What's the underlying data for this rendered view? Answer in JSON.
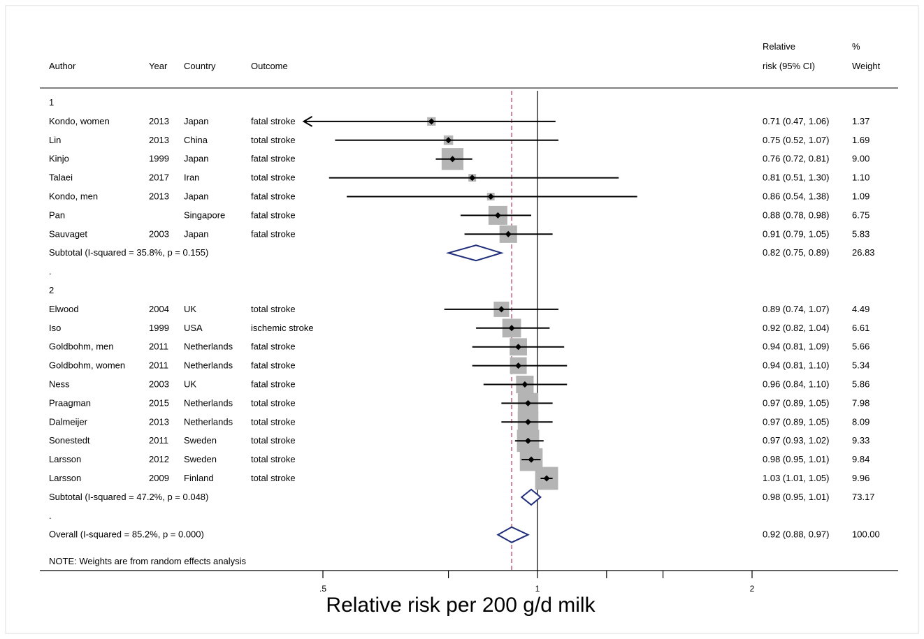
{
  "chart_data": {
    "type": "forest",
    "xlabel": "Relative risk per 200 g/d milk",
    "x_scale": "log",
    "x_ticks": [
      {
        "value": 0.5,
        "label": ".5"
      },
      {
        "value": 1,
        "label": "1"
      },
      {
        "value": 2,
        "label": "2"
      }
    ],
    "x_minor_ticks": [
      0.75,
      1.25,
      1.5
    ],
    "xlim": [
      0.5,
      2.67
    ],
    "reference_line": 1,
    "overall_line": 0.92,
    "headers": {
      "author": "Author",
      "year": "Year",
      "country": "Country",
      "outcome": "Outcome",
      "rr_line1": "Relative",
      "rr_line2": "risk (95% CI)",
      "weight_line1": "%",
      "weight_line2": "Weight"
    },
    "rows": [
      {
        "kind": "group",
        "label": "1"
      },
      {
        "kind": "study",
        "author": "Kondo, women",
        "year": "2013",
        "country": "Japan",
        "outcome": "fatal stroke",
        "rr": 0.71,
        "lo": 0.47,
        "hi": 1.06,
        "ci_text": "0.71 (0.47, 1.06)",
        "weight": "1.37",
        "w": 1.37,
        "arrow_left": true
      },
      {
        "kind": "study",
        "author": "Lin",
        "year": "2013",
        "country": "China",
        "outcome": "total stroke",
        "rr": 0.75,
        "lo": 0.52,
        "hi": 1.07,
        "ci_text": "0.75 (0.52, 1.07)",
        "weight": "1.69",
        "w": 1.69
      },
      {
        "kind": "study",
        "author": "Kinjo",
        "year": "1999",
        "country": "Japan",
        "outcome": "fatal stroke",
        "rr": 0.76,
        "lo": 0.72,
        "hi": 0.81,
        "ci_text": "0.76 (0.72, 0.81)",
        "weight": "9.00",
        "w": 9.0
      },
      {
        "kind": "study",
        "author": "Talaei",
        "year": "2017",
        "country": "Iran",
        "outcome": "total stroke",
        "rr": 0.81,
        "lo": 0.51,
        "hi": 1.3,
        "ci_text": "0.81 (0.51, 1.30)",
        "weight": "1.10",
        "w": 1.1
      },
      {
        "kind": "study",
        "author": "Kondo, men",
        "year": "2013",
        "country": "Japan",
        "outcome": "fatal stroke",
        "rr": 0.86,
        "lo": 0.54,
        "hi": 1.38,
        "ci_text": "0.86 (0.54, 1.38)",
        "weight": "1.09",
        "w": 1.09
      },
      {
        "kind": "study",
        "author": "Pan",
        "year": "",
        "country": "Singapore",
        "outcome": "fatal stroke",
        "rr": 0.88,
        "lo": 0.78,
        "hi": 0.98,
        "ci_text": "0.88 (0.78, 0.98)",
        "weight": "6.75",
        "w": 6.75
      },
      {
        "kind": "study",
        "author": "Sauvaget",
        "year": "2003",
        "country": "Japan",
        "outcome": "fatal stroke",
        "rr": 0.91,
        "lo": 0.79,
        "hi": 1.05,
        "ci_text": "0.91 (0.79, 1.05)",
        "weight": "5.83",
        "w": 5.83
      },
      {
        "kind": "subtotal",
        "label": "Subtotal  (I-squared = 35.8%, p = 0.155)",
        "rr": 0.82,
        "lo": 0.75,
        "hi": 0.89,
        "ci_text": "0.82 (0.75, 0.89)",
        "weight": "26.83"
      },
      {
        "kind": "dot",
        "label": "."
      },
      {
        "kind": "group",
        "label": "2"
      },
      {
        "kind": "study",
        "author": "Elwood",
        "year": "2004",
        "country": "UK",
        "outcome": "total stroke",
        "rr": 0.89,
        "lo": 0.74,
        "hi": 1.07,
        "ci_text": "0.89 (0.74, 1.07)",
        "weight": "4.49",
        "w": 4.49
      },
      {
        "kind": "study",
        "author": "Iso",
        "year": "1999",
        "country": "USA",
        "outcome": "ischemic stroke",
        "rr": 0.92,
        "lo": 0.82,
        "hi": 1.04,
        "ci_text": "0.92 (0.82, 1.04)",
        "weight": "6.61",
        "w": 6.61
      },
      {
        "kind": "study",
        "author": "Goldbohm, men",
        "year": "2011",
        "country": "Netherlands",
        "outcome": "fatal stroke",
        "rr": 0.94,
        "lo": 0.81,
        "hi": 1.09,
        "ci_text": "0.94 (0.81, 1.09)",
        "weight": "5.66",
        "w": 5.66
      },
      {
        "kind": "study",
        "author": "Goldbohm, women",
        "year": "2011",
        "country": "Netherlands",
        "outcome": "fatal stroke",
        "rr": 0.94,
        "lo": 0.81,
        "hi": 1.1,
        "ci_text": "0.94 (0.81, 1.10)",
        "weight": "5.34",
        "w": 5.34
      },
      {
        "kind": "study",
        "author": "Ness",
        "year": "2003",
        "country": "UK",
        "outcome": "fatal stroke",
        "rr": 0.96,
        "lo": 0.84,
        "hi": 1.1,
        "ci_text": "0.96 (0.84, 1.10)",
        "weight": "5.86",
        "w": 5.86
      },
      {
        "kind": "study",
        "author": "Praagman",
        "year": "2015",
        "country": "Netherlands",
        "outcome": "total stroke",
        "rr": 0.97,
        "lo": 0.89,
        "hi": 1.05,
        "ci_text": "0.97 (0.89, 1.05)",
        "weight": "7.98",
        "w": 7.98
      },
      {
        "kind": "study",
        "author": "Dalmeijer",
        "year": "2013",
        "country": "Netherlands",
        "outcome": "total stroke",
        "rr": 0.97,
        "lo": 0.89,
        "hi": 1.05,
        "ci_text": "0.97 (0.89, 1.05)",
        "weight": "8.09",
        "w": 8.09
      },
      {
        "kind": "study",
        "author": "Sonestedt",
        "year": "2011",
        "country": "Sweden",
        "outcome": "total stroke",
        "rr": 0.97,
        "lo": 0.93,
        "hi": 1.02,
        "ci_text": "0.97 (0.93, 1.02)",
        "weight": "9.33",
        "w": 9.33
      },
      {
        "kind": "study",
        "author": "Larsson",
        "year": "2012",
        "country": "Sweden",
        "outcome": "total stroke",
        "rr": 0.98,
        "lo": 0.95,
        "hi": 1.01,
        "ci_text": "0.98 (0.95, 1.01)",
        "weight": "9.84",
        "w": 9.84
      },
      {
        "kind": "study",
        "author": "Larsson",
        "year": "2009",
        "country": "Finland",
        "outcome": "total stroke",
        "rr": 1.03,
        "lo": 1.01,
        "hi": 1.05,
        "ci_text": "1.03 (1.01, 1.05)",
        "weight": "9.96",
        "w": 9.96
      },
      {
        "kind": "subtotal",
        "label": "Subtotal  (I-squared = 47.2%, p = 0.048)",
        "rr": 0.98,
        "lo": 0.95,
        "hi": 1.01,
        "ci_text": "0.98 (0.95, 1.01)",
        "weight": "73.17"
      },
      {
        "kind": "dot",
        "label": "."
      },
      {
        "kind": "overall",
        "label": "Overall  (I-squared = 85.2%, p = 0.000)",
        "rr": 0.92,
        "lo": 0.88,
        "hi": 0.97,
        "ci_text": "0.92 (0.88, 0.97)",
        "weight": "100.00"
      }
    ],
    "note": "NOTE: Weights are from random effects analysis"
  },
  "colors": {
    "box": "#b4b4b4",
    "diamond": "#1f2d7a",
    "overall_line": "#c0607a",
    "line": "#000000"
  }
}
